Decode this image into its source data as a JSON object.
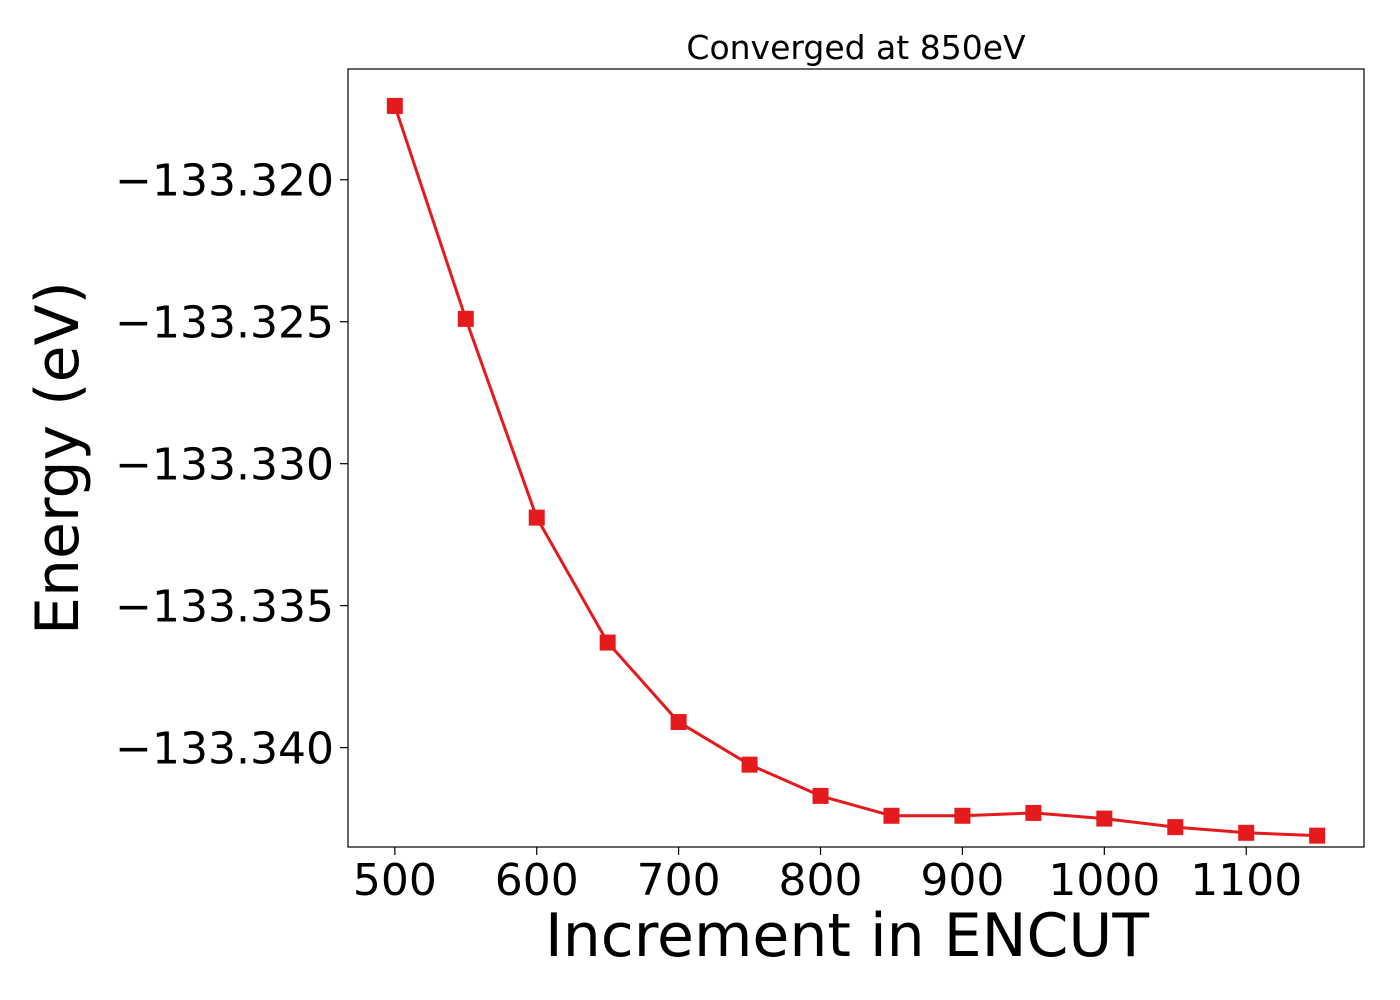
{
  "chart_data": {
    "type": "line",
    "title": "Converged at 850eV",
    "xlabel": "Increment in ENCUT",
    "ylabel": "Energy (eV)",
    "x": [
      500,
      550,
      600,
      650,
      700,
      750,
      800,
      850,
      900,
      950,
      1000,
      1050,
      1100,
      1150
    ],
    "series": [
      {
        "values": [
          -133.3174,
          -133.3249,
          -133.3319,
          -133.3363,
          -133.3391,
          -133.3406,
          -133.3417,
          -133.3424,
          -133.3424,
          -133.3423,
          -133.3425,
          -133.3428,
          -133.343,
          -133.3431
        ]
      }
    ],
    "xticks": [
      500,
      600,
      700,
      800,
      900,
      1000,
      1100
    ],
    "xtick_labels": [
      "500",
      "600",
      "700",
      "800",
      "900",
      "1000",
      "1100"
    ],
    "yticks": [
      -133.32,
      -133.325,
      -133.33,
      -133.335,
      -133.34
    ],
    "ytick_labels": [
      "−133.320",
      "−133.325",
      "−133.330",
      "−133.335",
      "−133.340"
    ],
    "xlim": [
      467,
      1183
    ],
    "ylim": [
      -133.3435,
      -133.3161
    ],
    "grid": false,
    "legend": false,
    "line_color": "#e41a1c",
    "marker": "square"
  }
}
